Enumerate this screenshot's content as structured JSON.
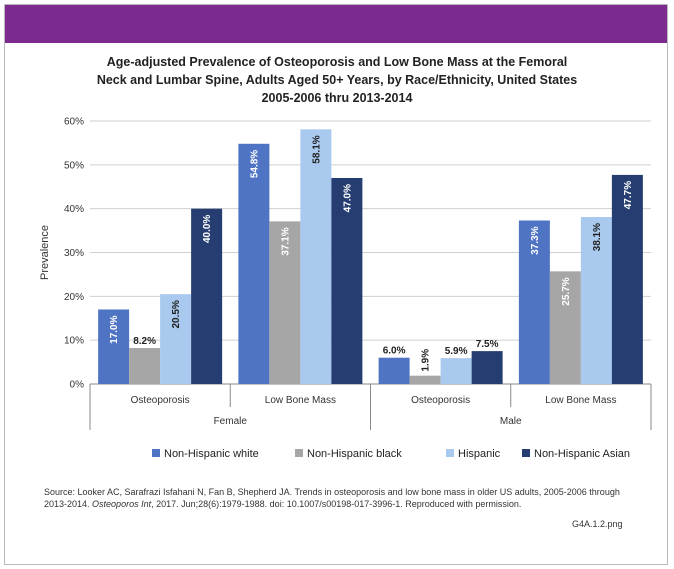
{
  "colors": {
    "banner": "#7b2a8f",
    "non_hispanic_white": "#4f74c4",
    "non_hispanic_black": "#a6a6a6",
    "hispanic": "#a9c9ee",
    "non_hispanic_asian": "#253d70"
  },
  "chart_data": {
    "type": "bar",
    "title_lines": [
      "Age-adjusted Prevalence of Osteoporosis and Low Bone Mass at the Femoral",
      "Neck and Lumbar Spine, Adults Aged 50+ Years, by Race/Ethnicity, United States",
      "2005-2006 thru 2013-2014"
    ],
    "ylabel": "Prevalence",
    "ylim": [
      0,
      60
    ],
    "yticks": [
      "0%",
      "10%",
      "20%",
      "30%",
      "40%",
      "50%",
      "60%"
    ],
    "yticks_values": [
      0,
      10,
      20,
      30,
      40,
      50,
      60
    ],
    "grid": true,
    "legend_position": "bottom",
    "categories": [
      "Osteoporosis",
      "Low Bone Mass",
      "Osteoporosis",
      "Low Bone Mass"
    ],
    "groups": [
      "Female",
      "Male"
    ],
    "series": [
      {
        "name": "Non-Hispanic white",
        "values": [
          17.0,
          54.8,
          6.0,
          37.3
        ],
        "labels": [
          "17.0%",
          "54.8%",
          "6.0%",
          "37.3%"
        ]
      },
      {
        "name": "Non-Hispanic black",
        "values": [
          8.2,
          37.1,
          1.9,
          25.7
        ],
        "labels": [
          "8.2%",
          "37.1%",
          "1.9%",
          "25.7%"
        ]
      },
      {
        "name": "Hispanic",
        "values": [
          20.5,
          58.1,
          5.9,
          38.1
        ],
        "labels": [
          "20.5%",
          "58.1%",
          "5.9%",
          "38.1%"
        ]
      },
      {
        "name": "Non-Hispanic Asian",
        "values": [
          40.0,
          47.0,
          7.5,
          47.7
        ],
        "labels": [
          "40.0%",
          "47.0%",
          "7.5%",
          "47.7%"
        ]
      }
    ]
  },
  "source": {
    "prefix": "Source: Looker AC, Sarafrazi Isfahani N, Fan B, Shepherd JA. Trends in osteoporosis and low bone mass in older US adults, 2005-2006 through 2013-2014. ",
    "journal": "Osteoporos Int",
    "suffix": ", 2017. Jun;28(6):1979-1988. doi: 10.1007/s00198-017-3996-1. Reproduced with permission."
  },
  "file_ref": "G4A.1.2.png"
}
